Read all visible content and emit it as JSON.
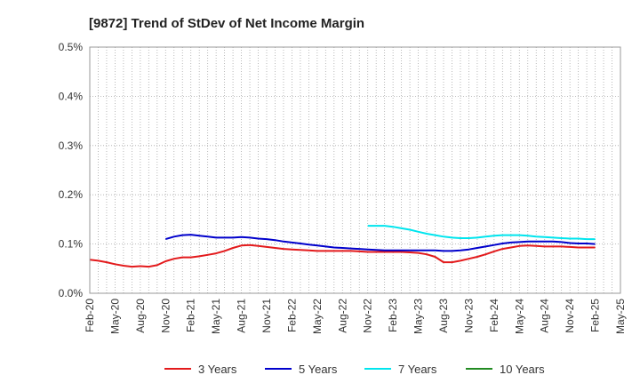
{
  "chart_data": {
    "type": "line",
    "title": "[9872]  Trend of StDev of Net Income Margin",
    "xlabel": "",
    "ylabel": "",
    "ylim": [
      0,
      0.5
    ],
    "yticks": [
      0,
      0.1,
      0.2,
      0.3,
      0.4,
      0.5
    ],
    "ytick_labels": [
      "0.0%",
      "0.1%",
      "0.2%",
      "0.3%",
      "0.4%",
      "0.5%"
    ],
    "x_tick_labels": [
      "Feb-20",
      "May-20",
      "Aug-20",
      "Nov-20",
      "Feb-21",
      "May-21",
      "Aug-21",
      "Nov-21",
      "Feb-22",
      "May-22",
      "Aug-22",
      "Nov-22",
      "Feb-23",
      "May-23",
      "Aug-23",
      "Nov-23",
      "Feb-24",
      "May-24",
      "Aug-24",
      "Nov-24",
      "Feb-25",
      "May-25"
    ],
    "x_start": "2020-02",
    "x_end": "2025-05",
    "grid": true,
    "legend_position": "bottom",
    "series": [
      {
        "name": "3 Years",
        "color": "#e31a1c",
        "points": [
          [
            "2020-02",
            0.068
          ],
          [
            "2020-03",
            0.066
          ],
          [
            "2020-04",
            0.063
          ],
          [
            "2020-05",
            0.059
          ],
          [
            "2020-06",
            0.056
          ],
          [
            "2020-07",
            0.054
          ],
          [
            "2020-08",
            0.055
          ],
          [
            "2020-09",
            0.054
          ],
          [
            "2020-10",
            0.057
          ],
          [
            "2020-11",
            0.065
          ],
          [
            "2020-12",
            0.07
          ],
          [
            "2021-01",
            0.073
          ],
          [
            "2021-02",
            0.073
          ],
          [
            "2021-03",
            0.075
          ],
          [
            "2021-04",
            0.078
          ],
          [
            "2021-05",
            0.081
          ],
          [
            "2021-06",
            0.086
          ],
          [
            "2021-07",
            0.092
          ],
          [
            "2021-08",
            0.097
          ],
          [
            "2021-09",
            0.098
          ],
          [
            "2021-10",
            0.096
          ],
          [
            "2021-11",
            0.094
          ],
          [
            "2021-12",
            0.092
          ],
          [
            "2022-01",
            0.09
          ],
          [
            "2022-02",
            0.089
          ],
          [
            "2022-03",
            0.088
          ],
          [
            "2022-04",
            0.087
          ],
          [
            "2022-05",
            0.086
          ],
          [
            "2022-06",
            0.086
          ],
          [
            "2022-07",
            0.086
          ],
          [
            "2022-08",
            0.086
          ],
          [
            "2022-09",
            0.086
          ],
          [
            "2022-10",
            0.085
          ],
          [
            "2022-11",
            0.084
          ],
          [
            "2022-12",
            0.084
          ],
          [
            "2023-01",
            0.084
          ],
          [
            "2023-02",
            0.084
          ],
          [
            "2023-03",
            0.084
          ],
          [
            "2023-04",
            0.083
          ],
          [
            "2023-05",
            0.082
          ],
          [
            "2023-06",
            0.079
          ],
          [
            "2023-07",
            0.074
          ],
          [
            "2023-08",
            0.063
          ],
          [
            "2023-09",
            0.063
          ],
          [
            "2023-10",
            0.066
          ],
          [
            "2023-11",
            0.07
          ],
          [
            "2023-12",
            0.074
          ],
          [
            "2024-01",
            0.079
          ],
          [
            "2024-02",
            0.085
          ],
          [
            "2024-03",
            0.09
          ],
          [
            "2024-04",
            0.093
          ],
          [
            "2024-05",
            0.096
          ],
          [
            "2024-06",
            0.097
          ],
          [
            "2024-07",
            0.096
          ],
          [
            "2024-08",
            0.095
          ],
          [
            "2024-09",
            0.095
          ],
          [
            "2024-10",
            0.095
          ],
          [
            "2024-11",
            0.094
          ],
          [
            "2024-12",
            0.093
          ],
          [
            "2025-01",
            0.093
          ],
          [
            "2025-02",
            0.093
          ]
        ]
      },
      {
        "name": "5 Years",
        "color": "#0000cc",
        "points": [
          [
            "2020-11",
            0.11
          ],
          [
            "2020-12",
            0.115
          ],
          [
            "2021-01",
            0.118
          ],
          [
            "2021-02",
            0.119
          ],
          [
            "2021-03",
            0.117
          ],
          [
            "2021-04",
            0.115
          ],
          [
            "2021-05",
            0.113
          ],
          [
            "2021-06",
            0.113
          ],
          [
            "2021-07",
            0.113
          ],
          [
            "2021-08",
            0.114
          ],
          [
            "2021-09",
            0.113
          ],
          [
            "2021-10",
            0.111
          ],
          [
            "2021-11",
            0.11
          ],
          [
            "2021-12",
            0.108
          ],
          [
            "2022-01",
            0.105
          ],
          [
            "2022-02",
            0.103
          ],
          [
            "2022-03",
            0.101
          ],
          [
            "2022-04",
            0.099
          ],
          [
            "2022-05",
            0.097
          ],
          [
            "2022-06",
            0.095
          ],
          [
            "2022-07",
            0.093
          ],
          [
            "2022-08",
            0.092
          ],
          [
            "2022-09",
            0.091
          ],
          [
            "2022-10",
            0.09
          ],
          [
            "2022-11",
            0.089
          ],
          [
            "2022-12",
            0.088
          ],
          [
            "2023-01",
            0.087
          ],
          [
            "2023-02",
            0.087
          ],
          [
            "2023-03",
            0.087
          ],
          [
            "2023-04",
            0.087
          ],
          [
            "2023-05",
            0.087
          ],
          [
            "2023-06",
            0.087
          ],
          [
            "2023-07",
            0.087
          ],
          [
            "2023-08",
            0.086
          ],
          [
            "2023-09",
            0.086
          ],
          [
            "2023-10",
            0.087
          ],
          [
            "2023-11",
            0.089
          ],
          [
            "2023-12",
            0.092
          ],
          [
            "2024-01",
            0.095
          ],
          [
            "2024-02",
            0.098
          ],
          [
            "2024-03",
            0.101
          ],
          [
            "2024-04",
            0.103
          ],
          [
            "2024-05",
            0.104
          ],
          [
            "2024-06",
            0.105
          ],
          [
            "2024-07",
            0.105
          ],
          [
            "2024-08",
            0.105
          ],
          [
            "2024-09",
            0.105
          ],
          [
            "2024-10",
            0.104
          ],
          [
            "2024-11",
            0.102
          ],
          [
            "2024-12",
            0.101
          ],
          [
            "2025-01",
            0.101
          ],
          [
            "2025-02",
            0.1
          ]
        ]
      },
      {
        "name": "7 Years",
        "color": "#00e5ee",
        "points": [
          [
            "2022-11",
            0.137
          ],
          [
            "2022-12",
            0.137
          ],
          [
            "2023-01",
            0.137
          ],
          [
            "2023-02",
            0.135
          ],
          [
            "2023-03",
            0.132
          ],
          [
            "2023-04",
            0.129
          ],
          [
            "2023-05",
            0.125
          ],
          [
            "2023-06",
            0.121
          ],
          [
            "2023-07",
            0.118
          ],
          [
            "2023-08",
            0.115
          ],
          [
            "2023-09",
            0.113
          ],
          [
            "2023-10",
            0.112
          ],
          [
            "2023-11",
            0.112
          ],
          [
            "2023-12",
            0.113
          ],
          [
            "2024-01",
            0.115
          ],
          [
            "2024-02",
            0.117
          ],
          [
            "2024-03",
            0.118
          ],
          [
            "2024-04",
            0.118
          ],
          [
            "2024-05",
            0.118
          ],
          [
            "2024-06",
            0.117
          ],
          [
            "2024-07",
            0.115
          ],
          [
            "2024-08",
            0.114
          ],
          [
            "2024-09",
            0.113
          ],
          [
            "2024-10",
            0.112
          ],
          [
            "2024-11",
            0.111
          ],
          [
            "2024-12",
            0.111
          ],
          [
            "2025-01",
            0.11
          ],
          [
            "2025-02",
            0.11
          ]
        ]
      },
      {
        "name": "10 Years",
        "color": "#228b22",
        "points": []
      }
    ]
  }
}
